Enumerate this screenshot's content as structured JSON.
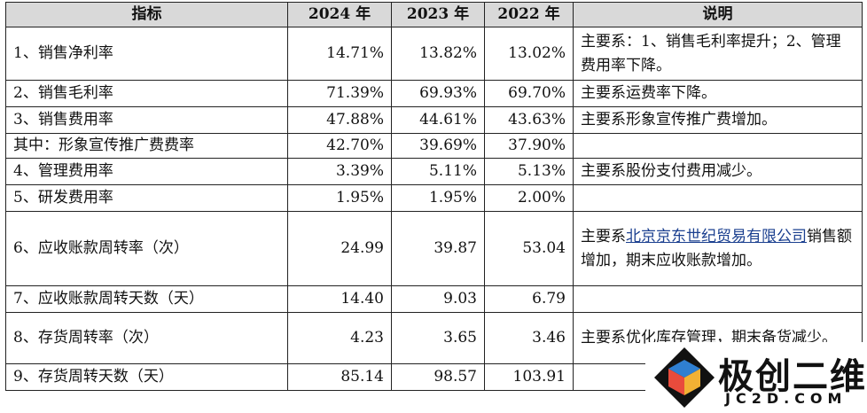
{
  "table": {
    "headers": [
      "指标",
      "2024 年",
      "2023 年",
      "2022 年",
      "说明"
    ],
    "rows": [
      {
        "indicator": "1、销售净利率",
        "values": [
          "14.71%",
          "13.82%",
          "13.02%"
        ],
        "note": [
          "主要系：1、销售毛利率提升；2、管理费用率下降。"
        ]
      },
      {
        "indicator": "2、销售毛利率",
        "values": [
          "71.39%",
          "69.93%",
          "69.70%"
        ],
        "note": [
          "主要系运费率下降。"
        ]
      },
      {
        "indicator": "3、销售费用率",
        "values": [
          "47.88%",
          "44.61%",
          "43.63%"
        ],
        "note": [
          "主要系形象宣传推广费增加。"
        ]
      },
      {
        "indicator": "其中：形象宣传推广费费率",
        "values": [
          "42.70%",
          "39.69%",
          "37.90%"
        ]
      },
      {
        "indicator": "4、管理费用率",
        "values": [
          "3.39%",
          "5.11%",
          "5.13%"
        ],
        "note": [
          "主要系股份支付费用减少。"
        ]
      },
      {
        "indicator": "5、研发费用率",
        "values": [
          "1.95%",
          "1.95%",
          "2.00%"
        ]
      },
      {
        "indicator": "6、应收账款周转率（次）",
        "values": [
          "24.99",
          "39.87",
          "53.04"
        ],
        "note": [
          "主要系",
          "北京京东世纪贸易有限公司",
          "销售额增加，期末应收账款增加。"
        ]
      },
      {
        "indicator": "7、应收账款周转天数（天）",
        "values": [
          "14.40",
          "9.03",
          "6.79"
        ]
      },
      {
        "indicator": "8、存货周转率（次）",
        "values": [
          "4.23",
          "3.65",
          "3.46"
        ],
        "note": [
          "主要系优化库存管理，期末备货减少。"
        ]
      },
      {
        "indicator": "9、存货周转天数（天）",
        "values": [
          "85.14",
          "98.57",
          "103.91"
        ]
      }
    ]
  },
  "watermark": {
    "title": "极创二维",
    "site": "JC2D.COM"
  }
}
